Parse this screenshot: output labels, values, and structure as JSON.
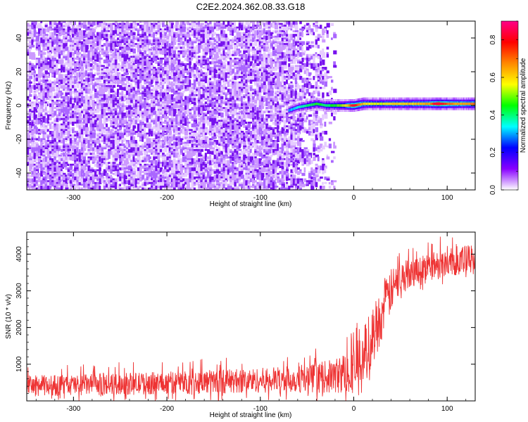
{
  "title": "C2E2.2024.362.08.33.G18",
  "chart_data": [
    {
      "type": "heatmap",
      "title": "C2E2.2024.362.08.33.G18",
      "xlabel": "Height of straight line (km)",
      "ylabel": "Frequency (Hz)",
      "xlim": [
        -350,
        130
      ],
      "ylim": [
        -50,
        50
      ],
      "xticks": [
        -300,
        -200,
        -100,
        0,
        100
      ],
      "yticks": [
        -40,
        -20,
        0,
        20,
        40
      ],
      "colorbar": {
        "label": "Normalized spectral amplitude",
        "range": [
          0,
          0.9
        ],
        "ticks": [
          0.0,
          0.2,
          0.4,
          0.6,
          0.8
        ],
        "colors": [
          "#ffffff",
          "#8800ff",
          "#0000ff",
          "#00ffff",
          "#00ff00",
          "#ffff00",
          "#ff8800",
          "#ff0000",
          "#ff0088"
        ]
      },
      "noise_region_x": [
        -350,
        -20
      ],
      "noise_amplitude_range": [
        0.05,
        0.15
      ],
      "signal_start_x": -70,
      "signal_trace": {
        "x": [
          -70,
          -60,
          -50,
          -40,
          -30,
          -20,
          -10,
          0,
          10,
          20,
          30,
          40,
          50,
          60,
          70,
          80,
          90,
          100,
          110,
          120,
          130
        ],
        "frequency": [
          -3,
          -1,
          0,
          1,
          0,
          0,
          0,
          0,
          1,
          1,
          1,
          1,
          1,
          1,
          1,
          1,
          1,
          1,
          1,
          1,
          1
        ],
        "amplitude": [
          0.3,
          0.35,
          0.4,
          0.45,
          0.4,
          0.45,
          0.55,
          0.8,
          0.6,
          0.55,
          0.55,
          0.6,
          0.6,
          0.6,
          0.62,
          0.65,
          0.85,
          0.7,
          0.65,
          0.65,
          0.7
        ]
      }
    },
    {
      "type": "line",
      "xlabel": "Height of straight line (km)",
      "ylabel": "SNR (10 * v/v)",
      "xlim": [
        -350,
        130
      ],
      "ylim": [
        0,
        4600
      ],
      "xticks": [
        -300,
        -200,
        -100,
        0,
        100
      ],
      "yticks": [
        1000,
        2000,
        3000,
        4000
      ],
      "color": "#ee3333",
      "series": [
        {
          "x": [
            -350,
            -300,
            -250,
            -200,
            -150,
            -100,
            -50,
            -20,
            0,
            10,
            20,
            30,
            40,
            50,
            60,
            80,
            100,
            120,
            130
          ],
          "y_low": [
            120,
            140,
            160,
            180,
            200,
            220,
            220,
            200,
            200,
            400,
            900,
            1700,
            2400,
            2900,
            3100,
            3300,
            3400,
            3400,
            3400
          ],
          "y_high": [
            700,
            720,
            760,
            800,
            860,
            900,
            980,
            1150,
            1500,
            2000,
            2600,
            3100,
            3600,
            3800,
            3900,
            4050,
            4150,
            4250,
            4300
          ]
        }
      ]
    }
  ]
}
